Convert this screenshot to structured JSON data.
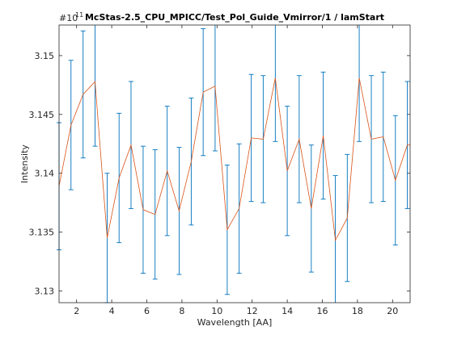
{
  "chart_data": {
    "type": "line",
    "title": "McStas-2.5_CPU_MPICC/Test_Pol_Guide_Vmirror/1 / lamStart",
    "xlabel": "Wavelength [AA]",
    "ylabel": "Intensity",
    "y_exponent_label": "#10",
    "y_exponent_power": "11",
    "xlim": [
      1,
      21
    ],
    "ylim": [
      3.129,
      3.1526
    ],
    "xticks": [
      2,
      4,
      6,
      8,
      10,
      12,
      14,
      16,
      18,
      20
    ],
    "yticks": [
      3.13,
      3.135,
      3.14,
      3.145,
      3.15
    ],
    "ytick_labels": [
      "3.13",
      "3.135",
      "3.14",
      "3.145",
      "3.15"
    ],
    "grid": false,
    "colors": {
      "line": "#d95319",
      "errorbar": "#0072bd"
    },
    "series": [
      {
        "x": [
          1.0,
          1.68,
          2.37,
          3.05,
          3.74,
          4.42,
          5.1,
          5.79,
          6.47,
          7.16,
          7.84,
          8.53,
          9.21,
          9.89,
          10.58,
          11.26,
          11.95,
          12.63,
          13.32,
          14.0,
          14.68,
          15.37,
          16.05,
          16.74,
          17.42,
          18.1,
          18.79,
          19.47,
          20.16,
          20.84
        ],
        "y": [
          3.1389,
          3.1441,
          3.1467,
          3.1478,
          3.1345,
          3.1396,
          3.1424,
          3.1369,
          3.1365,
          3.1402,
          3.1368,
          3.141,
          3.1469,
          3.1474,
          3.1352,
          3.137,
          3.143,
          3.1429,
          3.1481,
          3.1402,
          3.1429,
          3.137,
          3.1432,
          3.1343,
          3.1362,
          3.1481,
          3.1429,
          3.1431,
          3.1394,
          3.1424
        ],
        "err": [
          0.0054,
          0.0055,
          0.0054,
          0.0055,
          0.0055,
          0.0055,
          0.0054,
          0.0054,
          0.0055,
          0.0055,
          0.0054,
          0.0054,
          0.0054,
          0.0055,
          0.0055,
          0.0055,
          0.0054,
          0.0054,
          0.0054,
          0.0055,
          0.0054,
          0.0054,
          0.0054,
          0.0055,
          0.0054,
          0.0054,
          0.0054,
          0.0055,
          0.0055,
          0.0054
        ]
      }
    ]
  }
}
